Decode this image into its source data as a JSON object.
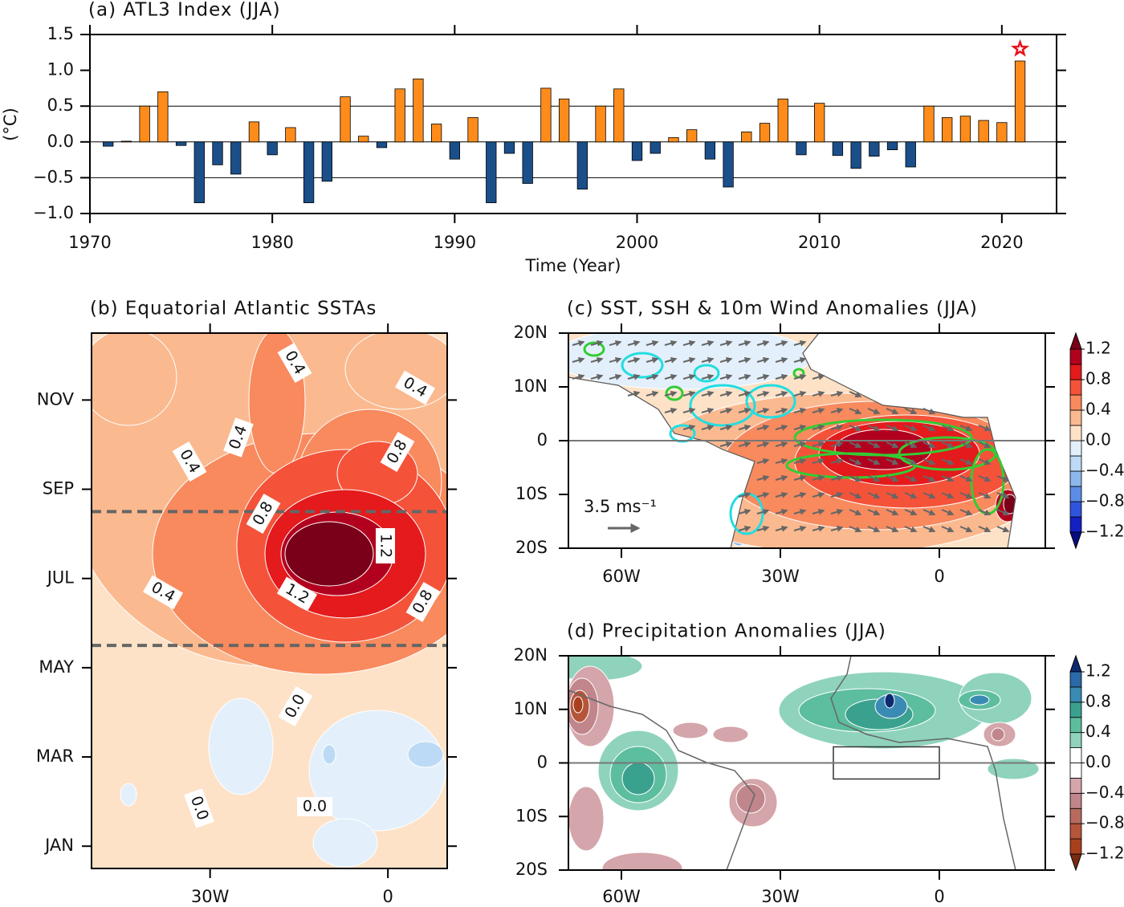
{
  "chart_data": [
    {
      "type": "bar",
      "title": "(a) ATL3 Index (JJA)",
      "x_label": "Time (Year)",
      "y_label": "(°C)",
      "x": [
        1971,
        1972,
        1973,
        1974,
        1975,
        1976,
        1977,
        1978,
        1979,
        1980,
        1981,
        1982,
        1983,
        1984,
        1985,
        1986,
        1987,
        1988,
        1989,
        1990,
        1991,
        1992,
        1993,
        1994,
        1995,
        1996,
        1997,
        1998,
        1999,
        2000,
        2001,
        2002,
        2003,
        2004,
        2005,
        2006,
        2007,
        2008,
        2009,
        2010,
        2011,
        2012,
        2013,
        2014,
        2015,
        2016,
        2017,
        2018,
        2019,
        2020,
        2021
      ],
      "values": [
        -0.06,
        0.01,
        0.5,
        0.7,
        -0.05,
        -0.85,
        -0.32,
        -0.45,
        0.28,
        -0.18,
        0.2,
        -0.85,
        -0.55,
        0.63,
        0.08,
        -0.08,
        0.74,
        0.88,
        0.25,
        -0.24,
        0.34,
        -0.85,
        -0.16,
        -0.58,
        0.75,
        0.6,
        -0.66,
        0.5,
        0.74,
        -0.26,
        -0.16,
        0.06,
        0.17,
        -0.24,
        -0.63,
        0.14,
        0.26,
        0.6,
        -0.18,
        0.54,
        -0.19,
        -0.37,
        -0.2,
        -0.11,
        -0.35,
        0.5,
        0.34,
        0.36,
        0.3,
        0.27,
        1.13
      ],
      "positive_color": "#ff8c1a",
      "negative_color": "#1a4f8a",
      "xlim": [
        1970,
        2023
      ],
      "xticks": [
        1970,
        1980,
        1990,
        2000,
        2010,
        2020
      ],
      "ylim": [
        -1,
        1.5
      ],
      "yticks": [
        {
          "value": -1,
          "label": "−1.0"
        },
        {
          "value": -0.5,
          "label": "−0.5"
        },
        {
          "value": 0,
          "label": "0.0"
        },
        0.5,
        {
          "value": 1,
          "label": "1.0"
        },
        1.5
      ],
      "reference_lines": [
        -0.5,
        0,
        0.5
      ],
      "star": {
        "x": 2021,
        "y": 1.3,
        "color": "#e8141c"
      }
    },
    {
      "type": "contour",
      "title": "(b) Equatorial Atlantic SSTAs",
      "xlim": [
        -50,
        10
      ],
      "xticks": [
        {
          "value": -30,
          "label": "30W"
        },
        0
      ],
      "ylim": [
        -0.5,
        11.5
      ],
      "yticks": [
        {
          "value": 0,
          "label": "JAN"
        },
        {
          "value": 2,
          "label": "MAR"
        },
        {
          "value": 4,
          "label": "MAY"
        },
        {
          "value": 6,
          "label": "JUL"
        },
        {
          "value": 8,
          "label": "SEP"
        },
        {
          "value": 10,
          "label": "NOV"
        }
      ],
      "dashed_lines": [
        4.5,
        7.5
      ],
      "contour_labels": [
        "0.4",
        "0.4",
        "0.4",
        "0.4",
        "0.8",
        "0.8",
        "1.2",
        "1.2",
        "0.4",
        "0.8",
        "0.0",
        "0.0",
        "0.0"
      ]
    },
    {
      "type": "map",
      "title": "(c) SST, SSH & 10m Wind Anomalies (JJA)",
      "xlim": [
        -70,
        20
      ],
      "xticks": [
        {
          "value": -60,
          "label": "60W"
        },
        {
          "value": -30,
          "label": "30W"
        },
        0
      ],
      "ylim": [
        -20,
        20
      ],
      "yticks": [
        {
          "value": -20,
          "label": "20S"
        },
        {
          "value": -10,
          "label": "10S"
        },
        0,
        {
          "value": 10,
          "label": "10N"
        },
        {
          "value": 20,
          "label": "20N"
        }
      ],
      "reference_vector": "3.5 ms⁻¹",
      "colorbar": {
        "lim": [
          -1.2,
          1.2
        ],
        "ticks": [
          {
            "value": -1.2,
            "label": "−1.2"
          },
          {
            "value": -0.8,
            "label": "−0.8"
          },
          {
            "value": -0.4,
            "label": "−0.4"
          },
          {
            "value": 0,
            "label": "0.0"
          },
          0.4,
          0.8,
          1.2
        ],
        "colors": [
          "#0a0a80",
          "#1420c0",
          "#2f55dd",
          "#5b8de6",
          "#8cb8ee",
          "#bcdaf5",
          "#e3f0fb",
          "#fde2c8",
          "#fbb98f",
          "#f88a5e",
          "#f4533a",
          "#e41a1c",
          "#b2001f",
          "#7a0019"
        ]
      }
    },
    {
      "type": "map",
      "title": "(d) Precipitation Anomalies (JJA)",
      "xlim": [
        -70,
        20
      ],
      "xticks": [
        {
          "value": -60,
          "label": "60W"
        },
        {
          "value": -30,
          "label": "30W"
        },
        0
      ],
      "ylim": [
        -20,
        20
      ],
      "yticks": [
        {
          "value": -20,
          "label": "20S"
        },
        {
          "value": -10,
          "label": "10S"
        },
        0,
        {
          "value": 10,
          "label": "10N"
        },
        {
          "value": 20,
          "label": "20N"
        }
      ],
      "box": {
        "lon": [
          -20,
          0
        ],
        "lat": [
          -3,
          3
        ]
      },
      "colorbar": {
        "lim": [
          -1.2,
          1.2
        ],
        "ticks": [
          {
            "value": -1.2,
            "label": "−1.2"
          },
          {
            "value": -0.8,
            "label": "−0.8"
          },
          {
            "value": -0.4,
            "label": "−0.4"
          },
          {
            "value": 0,
            "label": "0.0"
          },
          0.4,
          0.8,
          1.2
        ],
        "colors": [
          "#7a2a10",
          "#a8401e",
          "#b5553a",
          "#b86a5f",
          "#c0868b",
          "#d4a5aa",
          "#ffffff",
          "#ffffff",
          "#8fd3bd",
          "#5dbd9f",
          "#3aa18f",
          "#3a8bb4",
          "#2a6aa8",
          "#0d2a70"
        ]
      }
    }
  ]
}
